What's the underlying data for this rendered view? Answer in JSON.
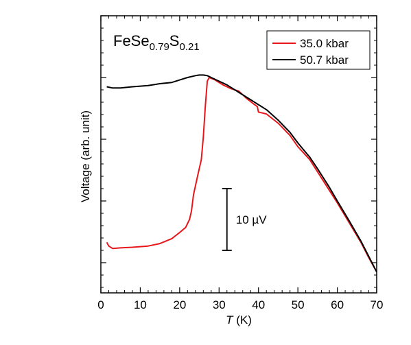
{
  "chart_data": {
    "type": "line",
    "title": "",
    "xlabel": "T (K)",
    "xlabel_parts": {
      "var": "T",
      "unit": " (K)"
    },
    "ylabel": "Voltage (arb. unit)",
    "xlim": [
      0,
      70
    ],
    "x_ticks": [
      0,
      10,
      20,
      30,
      40,
      50,
      60,
      70
    ],
    "y_ticks_shown": false,
    "grid": false,
    "legend_position": "top-right",
    "annotation": {
      "text": "FeSe0.79S0.21",
      "parts": [
        {
          "t": "FeSe",
          "sub": false
        },
        {
          "t": "0.79",
          "sub": true
        },
        {
          "t": "S",
          "sub": false
        },
        {
          "t": "0.21",
          "sub": true
        }
      ]
    },
    "scale_bar": {
      "label": "10 µV",
      "length_uV": 10,
      "x": 32
    },
    "y_unit": "µV (arbitrary offset)",
    "series": [
      {
        "name": "35.0 kbar",
        "color": "#e8161a",
        "points": [
          [
            1.5,
            -6.7
          ],
          [
            2,
            -7.3
          ],
          [
            3,
            -7.7
          ],
          [
            5,
            -7.6
          ],
          [
            8,
            -7.5
          ],
          [
            12,
            -7.3
          ],
          [
            15,
            -6.9
          ],
          [
            18,
            -6.1
          ],
          [
            20,
            -5.1
          ],
          [
            21.5,
            -4.3
          ],
          [
            22.5,
            -3.0
          ],
          [
            23,
            -1.6
          ],
          [
            23.5,
            1.0
          ],
          [
            24.5,
            3.9
          ],
          [
            25.5,
            6.7
          ],
          [
            26,
            10.3
          ],
          [
            26.5,
            15.3
          ],
          [
            27,
            19.4
          ],
          [
            27.5,
            20.0
          ],
          [
            29,
            19.6
          ],
          [
            31,
            18.8
          ],
          [
            33,
            18.2
          ],
          [
            35,
            17.8
          ],
          [
            37,
            16.6
          ],
          [
            39,
            15.6
          ],
          [
            39.7,
            15.3
          ],
          [
            40,
            14.4
          ],
          [
            42,
            14.1
          ],
          [
            45,
            12.6
          ],
          [
            48,
            10.6
          ],
          [
            50,
            8.8
          ],
          [
            53,
            6.7
          ],
          [
            55,
            4.7
          ],
          [
            58,
            1.7
          ],
          [
            60,
            -0.3
          ],
          [
            63,
            -3.5
          ],
          [
            66,
            -6.7
          ],
          [
            68,
            -9.2
          ],
          [
            70,
            -11.5
          ]
        ]
      },
      {
        "name": "50.7 kbar",
        "color": "#000000",
        "points": [
          [
            1.5,
            18.5
          ],
          [
            3,
            18.3
          ],
          [
            5,
            18.3
          ],
          [
            8,
            18.5
          ],
          [
            10,
            18.6
          ],
          [
            12,
            18.7
          ],
          [
            15,
            19.0
          ],
          [
            18,
            19.2
          ],
          [
            20,
            19.6
          ],
          [
            22,
            20.0
          ],
          [
            24,
            20.3
          ],
          [
            25,
            20.4
          ],
          [
            26,
            20.4
          ],
          [
            27,
            20.3
          ],
          [
            28,
            20.0
          ],
          [
            30,
            19.4
          ],
          [
            32,
            18.8
          ],
          [
            35,
            17.6
          ],
          [
            38,
            16.4
          ],
          [
            40,
            15.6
          ],
          [
            42,
            14.8
          ],
          [
            45,
            13.1
          ],
          [
            48,
            11.1
          ],
          [
            50,
            9.4
          ],
          [
            53,
            7.1
          ],
          [
            55,
            5.2
          ],
          [
            58,
            2.2
          ],
          [
            60,
            0.0
          ],
          [
            63,
            -3.2
          ],
          [
            66,
            -6.5
          ],
          [
            68,
            -9.0
          ],
          [
            70,
            -11.5
          ]
        ]
      }
    ]
  }
}
